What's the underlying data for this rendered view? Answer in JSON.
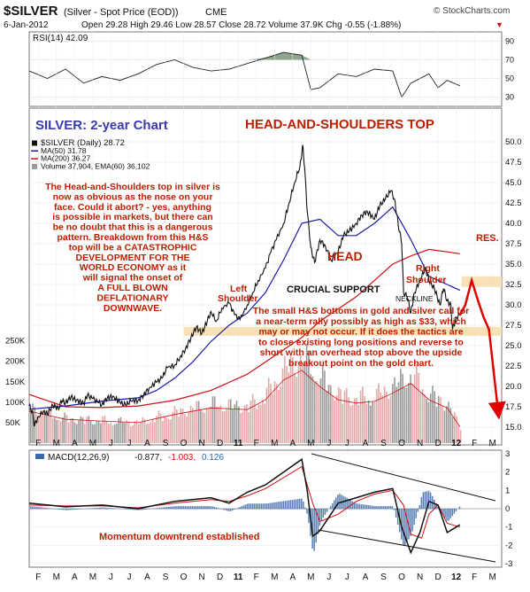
{
  "header": {
    "ticker": "$SILVER",
    "description": "(Silver - Spot Price (EOD))",
    "exchange": "CME",
    "watermark": "© StockCharts.com",
    "date": "6-Jan-2012",
    "stats": "Open 29.28  High 29.46  Low 28.57  Close 28.72  Volume 37.9K  Chg -0.55 (-1.88%)",
    "chg_arrow": "▼"
  },
  "rsi_panel": {
    "label": "RSI(14) 42.09",
    "ticks": [
      "90",
      "70",
      "50",
      "30"
    ]
  },
  "main_panel": {
    "title_left": "SILVER: 2-year Chart",
    "title_right": "HEAD-AND-SHOULDERS TOP",
    "legend": [
      "$SILVER (Daily) 28.72",
      "MA(50) 31.78",
      "MA(200) 36.27",
      "Volume 37,904, EMA(60) 36,102"
    ],
    "price_ticks": [
      "50.0",
      "47.5",
      "45.0",
      "42.5",
      "40.0",
      "37.5",
      "35.0",
      "32.5",
      "30.0",
      "27.5",
      "25.0",
      "22.5",
      "20.0",
      "17.5",
      "15.0"
    ],
    "volume_ticks": [
      "250K",
      "200K",
      "150K",
      "100K",
      "50K"
    ],
    "annotations": {
      "left_text": [
        "The Head-and-Shoulders top in silver is",
        "now as obvious as the nose on your",
        "face. Could it abort? - yes, anything",
        "is possible in markets, but there can",
        "be no doubt that this is a dangerous",
        "pattern. Breakdown from this H&S",
        "top will be a CATASTROPHIC",
        "DEVELOPMENT FOR THE",
        "WORLD ECONOMY as it",
        "will signal the onset of",
        "A FULL BLOWN",
        "DEFLATIONARY",
        "DOWNWAVE."
      ],
      "head": "HEAD",
      "res": "RES.",
      "left_shoulder": [
        "Left",
        "Shoulder"
      ],
      "right_shoulder": [
        "Right",
        "Shoulder"
      ],
      "support": "CRUCIAL SUPPORT",
      "neckline": "NECKLINE",
      "bottom_text": [
        "The small H&S bottoms in gold and silver call for",
        "a near-term rally possibly as high as $33, which",
        "may or may not occur. If it does the tactics are",
        "to close existing long positions and reverse to",
        "short with an overhead stop above the upside",
        "breakout point on the gold chart."
      ]
    }
  },
  "macd_panel": {
    "label": "MACD(12,26,9)",
    "values": [
      "-0.877,",
      "-1.003,",
      "0.126"
    ],
    "ticks": [
      "3",
      "2",
      "1",
      "0",
      "-1",
      "-2",
      "-3"
    ],
    "annotation": "Momentum downtrend established"
  },
  "x_axis": {
    "labels": [
      "F",
      "M",
      "A",
      "M",
      "J",
      "J",
      "A",
      "S",
      "O",
      "N",
      "D",
      "11",
      "F",
      "M",
      "A",
      "M",
      "J",
      "J",
      "A",
      "S",
      "O",
      "N",
      "D",
      "12",
      "F",
      "M"
    ]
  },
  "colors": {
    "price": "#111111",
    "ma50": "#1a1aa8",
    "ma200": "#cc1111",
    "annotation": "#bb1e00",
    "title_left": "#3a3aaa",
    "support_band": "#f6dfb0",
    "volume_up": "#e5a7a7",
    "volume_down": "#9a9a9a",
    "macd_hist": "#3c6aa8",
    "projection": "#e00000"
  },
  "chart_data": {
    "type": "line",
    "series": [
      {
        "name": "$SILVER (Daily)",
        "points": [
          [
            0,
            17.6
          ],
          [
            0.15,
            17.0
          ],
          [
            0.3,
            15.2
          ],
          [
            0.5,
            16.3
          ],
          [
            0.8,
            17.0
          ],
          [
            1.0,
            16.6
          ],
          [
            1.3,
            17.7
          ],
          [
            1.6,
            17.3
          ],
          [
            1.8,
            18.2
          ],
          [
            2.0,
            18.0
          ],
          [
            2.3,
            18.7
          ],
          [
            2.6,
            18.3
          ],
          [
            3.0,
            17.9
          ],
          [
            3.2,
            18.9
          ],
          [
            3.5,
            18.5
          ],
          [
            3.8,
            18.0
          ],
          [
            4.0,
            17.8
          ],
          [
            4.3,
            18.6
          ],
          [
            4.6,
            18.8
          ],
          [
            5.0,
            18.0
          ],
          [
            5.3,
            17.7
          ],
          [
            5.6,
            18.2
          ],
          [
            6.0,
            18.3
          ],
          [
            6.3,
            19.0
          ],
          [
            6.6,
            19.8
          ],
          [
            7.0,
            20.5
          ],
          [
            7.3,
            21.0
          ],
          [
            7.6,
            22.3
          ],
          [
            8.0,
            22.6
          ],
          [
            8.3,
            23.6
          ],
          [
            8.6,
            24.6
          ],
          [
            8.9,
            26.0
          ],
          [
            9.2,
            27.3
          ],
          [
            9.5,
            26.5
          ],
          [
            9.8,
            28.0
          ],
          [
            10.0,
            29.2
          ],
          [
            10.3,
            28.0
          ],
          [
            10.6,
            29.6
          ],
          [
            11.0,
            30.2
          ],
          [
            11.3,
            28.8
          ],
          [
            11.6,
            28.2
          ],
          [
            12.0,
            30.0
          ],
          [
            12.3,
            31.5
          ],
          [
            12.6,
            33.0
          ],
          [
            13.0,
            34.5
          ],
          [
            13.3,
            36.5
          ],
          [
            13.6,
            38.0
          ],
          [
            14.0,
            40.0
          ],
          [
            14.3,
            42.5
          ],
          [
            14.6,
            45.0
          ],
          [
            14.9,
            47.0
          ],
          [
            15.05,
            49.6
          ],
          [
            15.15,
            47.0
          ],
          [
            15.3,
            41.5
          ],
          [
            15.5,
            37.0
          ],
          [
            15.7,
            35.2
          ],
          [
            16.0,
            38.0
          ],
          [
            16.3,
            37.2
          ],
          [
            16.6,
            35.5
          ],
          [
            17.0,
            36.5
          ],
          [
            17.3,
            38.5
          ],
          [
            17.6,
            39.0
          ],
          [
            18.0,
            40.0
          ],
          [
            18.3,
            41.0
          ],
          [
            18.6,
            41.5
          ],
          [
            19.0,
            40.5
          ],
          [
            19.3,
            42.2
          ],
          [
            19.6,
            43.0
          ],
          [
            19.9,
            44.0
          ],
          [
            20.1,
            43.0
          ],
          [
            20.3,
            40.0
          ],
          [
            20.5,
            37.5
          ],
          [
            20.6,
            31.5
          ],
          [
            20.8,
            31.0
          ],
          [
            21.0,
            29.0
          ],
          [
            21.2,
            31.5
          ],
          [
            21.5,
            33.0
          ],
          [
            21.8,
            34.5
          ],
          [
            22.0,
            33.0
          ],
          [
            22.3,
            32.0
          ],
          [
            22.6,
            30.0
          ],
          [
            22.8,
            32.0
          ],
          [
            23.0,
            30.5
          ],
          [
            23.2,
            30.0
          ],
          [
            23.3,
            27.0
          ],
          [
            23.5,
            28.5
          ],
          [
            23.7,
            28.72
          ]
        ]
      },
      {
        "name": "MA(50)",
        "points": [
          [
            0,
            17.2
          ],
          [
            2,
            17.6
          ],
          [
            4,
            18.2
          ],
          [
            6,
            18.6
          ],
          [
            7,
            19.5
          ],
          [
            8,
            21.0
          ],
          [
            9,
            23.0
          ],
          [
            10,
            25.5
          ],
          [
            11,
            27.5
          ],
          [
            12,
            29.0
          ],
          [
            13,
            31.5
          ],
          [
            14,
            35.5
          ],
          [
            15,
            40.0
          ],
          [
            16,
            40.5
          ],
          [
            17,
            38.5
          ],
          [
            18,
            38.5
          ],
          [
            19,
            40.0
          ],
          [
            20,
            42.0
          ],
          [
            21,
            38.0
          ],
          [
            22,
            33.5
          ],
          [
            23,
            32.5
          ],
          [
            23.7,
            31.78
          ]
        ]
      },
      {
        "name": "MA(200)",
        "points": [
          [
            0,
            19.0
          ],
          [
            2,
            17.5
          ],
          [
            4,
            17.4
          ],
          [
            6,
            17.6
          ],
          [
            8,
            18.3
          ],
          [
            10,
            19.5
          ],
          [
            12,
            21.5
          ],
          [
            14,
            24.5
          ],
          [
            15,
            26.0
          ],
          [
            16,
            28.0
          ],
          [
            17,
            29.5
          ],
          [
            18,
            31.0
          ],
          [
            19,
            33.0
          ],
          [
            20,
            35.0
          ],
          [
            21,
            36.0
          ],
          [
            22,
            36.8
          ],
          [
            23,
            36.5
          ],
          [
            23.7,
            36.27
          ]
        ]
      },
      {
        "name": "Projection",
        "points": [
          [
            23.7,
            28.72
          ],
          [
            24.0,
            30.0
          ],
          [
            24.35,
            33.0
          ],
          [
            24.7,
            30.5
          ],
          [
            25.0,
            28.5
          ],
          [
            25.3,
            27.0
          ],
          [
            25.8,
            17.0
          ]
        ]
      }
    ],
    "x_axis_months": [
      "F",
      "M",
      "A",
      "M",
      "J",
      "J",
      "A",
      "S",
      "O",
      "N",
      "D",
      "11",
      "F",
      "M",
      "A",
      "M",
      "J",
      "J",
      "A",
      "S",
      "O",
      "N",
      "D",
      "12",
      "F",
      "M"
    ],
    "xlim": [
      0,
      26
    ],
    "ylim": [
      15,
      50
    ],
    "support_zone": [
      26.2,
      27.3
    ],
    "resistance_zone": [
      32.2,
      33.5
    ],
    "rsi": [
      [
        0,
        58
      ],
      [
        1,
        50
      ],
      [
        2,
        60
      ],
      [
        3,
        45
      ],
      [
        4,
        52
      ],
      [
        5,
        48
      ],
      [
        6,
        55
      ],
      [
        7,
        65
      ],
      [
        8,
        70
      ],
      [
        9,
        62
      ],
      [
        10,
        58
      ],
      [
        11,
        60
      ],
      [
        12,
        66
      ],
      [
        13,
        72
      ],
      [
        14,
        78
      ],
      [
        15,
        75
      ],
      [
        15.5,
        38
      ],
      [
        16,
        40
      ],
      [
        17,
        55
      ],
      [
        18,
        52
      ],
      [
        19,
        60
      ],
      [
        20,
        58
      ],
      [
        20.5,
        30
      ],
      [
        21,
        45
      ],
      [
        22,
        55
      ],
      [
        22.5,
        40
      ],
      [
        23,
        48
      ],
      [
        23.7,
        42.09
      ]
    ],
    "volume_k": [
      [
        0,
        85
      ],
      [
        2,
        60
      ],
      [
        4,
        55
      ],
      [
        6,
        50
      ],
      [
        8,
        75
      ],
      [
        10,
        95
      ],
      [
        12,
        90
      ],
      [
        13,
        120
      ],
      [
        14,
        180
      ],
      [
        15,
        210
      ],
      [
        16,
        160
      ],
      [
        17,
        120
      ],
      [
        18,
        110
      ],
      [
        19,
        115
      ],
      [
        20,
        140
      ],
      [
        21,
        170
      ],
      [
        22,
        120
      ],
      [
        23,
        95
      ],
      [
        23.7,
        37.9
      ]
    ],
    "macd_range": [
      -3,
      3
    ],
    "macd": [
      [
        0,
        0.3
      ],
      [
        2,
        0.1
      ],
      [
        4,
        0.2
      ],
      [
        6,
        0.0
      ],
      [
        8,
        0.4
      ],
      [
        10,
        0.6
      ],
      [
        11,
        0.3
      ],
      [
        12,
        0.9
      ],
      [
        13,
        1.3
      ],
      [
        14,
        2.0
      ],
      [
        15,
        2.7
      ],
      [
        15.3,
        1.0
      ],
      [
        15.6,
        -1.5
      ],
      [
        16,
        -1.2
      ],
      [
        17,
        0.3
      ],
      [
        18,
        0.6
      ],
      [
        19,
        0.9
      ],
      [
        20,
        1.1
      ],
      [
        20.5,
        -1.0
      ],
      [
        21,
        -2.4
      ],
      [
        21.5,
        -1.3
      ],
      [
        22,
        0.4
      ],
      [
        22.5,
        0.2
      ],
      [
        23,
        -1.3
      ],
      [
        23.7,
        -0.877
      ]
    ],
    "macd_signal": [
      [
        0,
        0.2
      ],
      [
        2,
        0.15
      ],
      [
        4,
        0.15
      ],
      [
        6,
        0.05
      ],
      [
        8,
        0.3
      ],
      [
        10,
        0.5
      ],
      [
        11,
        0.4
      ],
      [
        12,
        0.7
      ],
      [
        13,
        1.1
      ],
      [
        14,
        1.7
      ],
      [
        15,
        2.3
      ],
      [
        15.6,
        0.3
      ],
      [
        16,
        -0.7
      ],
      [
        17,
        -0.3
      ],
      [
        18,
        0.4
      ],
      [
        19,
        0.8
      ],
      [
        20,
        1.0
      ],
      [
        20.6,
        0.2
      ],
      [
        21,
        -1.4
      ],
      [
        21.6,
        -1.6
      ],
      [
        22,
        -0.3
      ],
      [
        22.5,
        0.2
      ],
      [
        23,
        -0.8
      ],
      [
        23.7,
        -1.003
      ]
    ],
    "macd_histogram": 0.126
  }
}
